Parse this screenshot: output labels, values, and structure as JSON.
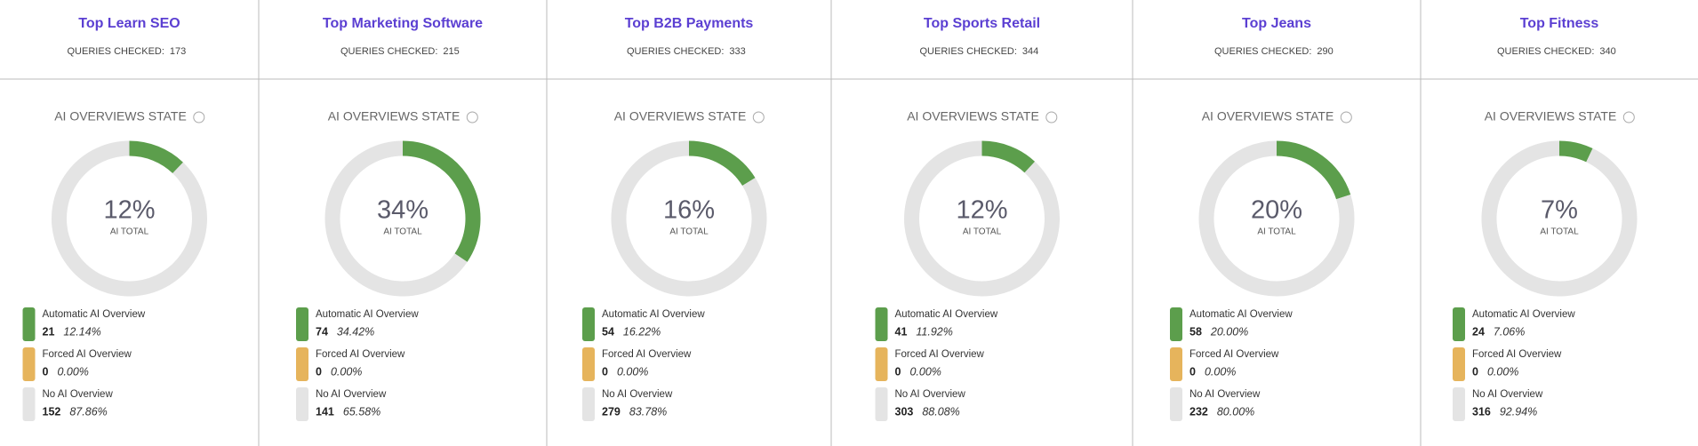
{
  "chart_data": [
    {
      "type": "donut",
      "title": "Top Learn SEO",
      "queries_label": "QUERIES CHECKED:",
      "queries": "173",
      "section_title": "AI OVERVIEWS STATE",
      "center_label": "12%",
      "center_caption": "AI TOTAL",
      "categories": [
        "Automatic AI Overview",
        "Forced AI Overview",
        "No AI Overview"
      ],
      "counts": [
        "21",
        "0",
        "152"
      ],
      "values": [
        12.14,
        0,
        87.86
      ],
      "value_labels": [
        "12.14%",
        "0.00%",
        "87.86%"
      ],
      "colors": [
        "#5c9e4c",
        "#e6b45c",
        "#e4e4e4"
      ]
    },
    {
      "type": "donut",
      "title": "Top Marketing Software",
      "queries_label": "QUERIES CHECKED:",
      "queries": "215",
      "section_title": "AI OVERVIEWS STATE",
      "center_label": "34%",
      "center_caption": "AI TOTAL",
      "categories": [
        "Automatic AI Overview",
        "Forced AI Overview",
        "No AI Overview"
      ],
      "counts": [
        "74",
        "0",
        "141"
      ],
      "values": [
        34.42,
        0,
        65.58
      ],
      "value_labels": [
        "34.42%",
        "0.00%",
        "65.58%"
      ],
      "colors": [
        "#5c9e4c",
        "#e6b45c",
        "#e4e4e4"
      ]
    },
    {
      "type": "donut",
      "title": "Top B2B Payments",
      "queries_label": "QUERIES CHECKED:",
      "queries": "333",
      "section_title": "AI OVERVIEWS STATE",
      "center_label": "16%",
      "center_caption": "AI TOTAL",
      "categories": [
        "Automatic AI Overview",
        "Forced AI Overview",
        "No AI Overview"
      ],
      "counts": [
        "54",
        "0",
        "279"
      ],
      "values": [
        16.22,
        0,
        83.78
      ],
      "value_labels": [
        "16.22%",
        "0.00%",
        "83.78%"
      ],
      "colors": [
        "#5c9e4c",
        "#e6b45c",
        "#e4e4e4"
      ]
    },
    {
      "type": "donut",
      "title": "Top Sports Retail",
      "queries_label": "QUERIES CHECKED:",
      "queries": "344",
      "section_title": "AI OVERVIEWS STATE",
      "center_label": "12%",
      "center_caption": "AI TOTAL",
      "categories": [
        "Automatic AI Overview",
        "Forced AI Overview",
        "No AI Overview"
      ],
      "counts": [
        "41",
        "0",
        "303"
      ],
      "values": [
        11.92,
        0,
        88.08
      ],
      "value_labels": [
        "11.92%",
        "0.00%",
        "88.08%"
      ],
      "colors": [
        "#5c9e4c",
        "#e6b45c",
        "#e4e4e4"
      ]
    },
    {
      "type": "donut",
      "title": "Top Jeans",
      "queries_label": "QUERIES CHECKED:",
      "queries": "290",
      "section_title": "AI OVERVIEWS STATE",
      "center_label": "20%",
      "center_caption": "AI TOTAL",
      "categories": [
        "Automatic AI Overview",
        "Forced AI Overview",
        "No AI Overview"
      ],
      "counts": [
        "58",
        "0",
        "232"
      ],
      "values": [
        20.0,
        0,
        80.0
      ],
      "value_labels": [
        "20.00%",
        "0.00%",
        "80.00%"
      ],
      "colors": [
        "#5c9e4c",
        "#e6b45c",
        "#e4e4e4"
      ]
    },
    {
      "type": "donut",
      "title": "Top Fitness",
      "queries_label": "QUERIES CHECKED:",
      "queries": "340",
      "section_title": "AI OVERVIEWS STATE",
      "center_label": "7%",
      "center_caption": "AI TOTAL",
      "categories": [
        "Automatic AI Overview",
        "Forced AI Overview",
        "No AI Overview"
      ],
      "counts": [
        "24",
        "0",
        "316"
      ],
      "values": [
        7.06,
        0,
        92.94
      ],
      "value_labels": [
        "7.06%",
        "0.00%",
        "92.94%"
      ],
      "colors": [
        "#5c9e4c",
        "#e6b45c",
        "#e4e4e4"
      ]
    }
  ]
}
